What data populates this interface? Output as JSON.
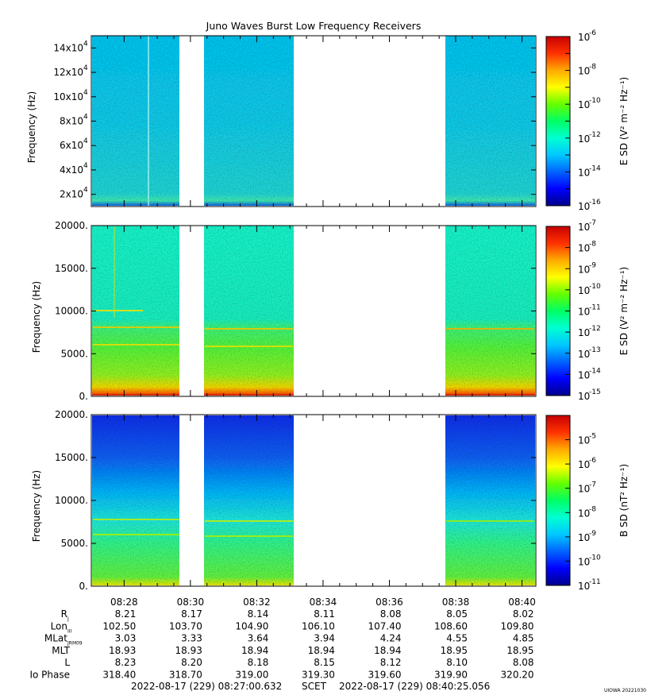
{
  "title": "Juno Waves Burst Low Frequency Receivers",
  "time_labels": [
    "08:28",
    "08:30",
    "08:32",
    "08:34",
    "08:36",
    "08:38",
    "08:40"
  ],
  "ephemeris": {
    "rows": [
      {
        "label": "R",
        "sub": "J",
        "values": [
          "8.21",
          "8.17",
          "8.14",
          "8.11",
          "8.08",
          "8.05",
          "8.02"
        ]
      },
      {
        "label": "Lon",
        "sub": "III",
        "values": [
          "102.50",
          "103.70",
          "104.90",
          "106.10",
          "107.40",
          "108.60",
          "109.80"
        ]
      },
      {
        "label": "MLat",
        "sub": "JRM09",
        "values": [
          "3.03",
          "3.33",
          "3.64",
          "3.94",
          "4.24",
          "4.55",
          "4.85"
        ]
      },
      {
        "label": "MLT",
        "sub": "",
        "values": [
          "18.93",
          "18.93",
          "18.94",
          "18.94",
          "18.94",
          "18.95",
          "18.95"
        ]
      },
      {
        "label": "L",
        "sub": "",
        "values": [
          "8.23",
          "8.20",
          "8.18",
          "8.15",
          "8.12",
          "8.10",
          "8.08"
        ]
      },
      {
        "label": "Io Phase",
        "sub": "",
        "values": [
          "318.40",
          "318.70",
          "319.00",
          "319.30",
          "319.60",
          "319.90",
          "320.20"
        ]
      }
    ]
  },
  "footer": {
    "start": "2022-08-17 (229) 08:27:00.632",
    "scet": "SCET",
    "end": "2022-08-17 (229) 08:40:25.056",
    "credit": "UIOWA 20221030"
  },
  "colors": {
    "background": "#ffffff",
    "colormap": [
      "#00008c",
      "#0000ff",
      "#0064ff",
      "#00c8ff",
      "#00ffd2",
      "#00ff64",
      "#64ff00",
      "#ffff00",
      "#ffaa00",
      "#ff3200",
      "#c80000"
    ]
  },
  "chart_data": [
    {
      "type": "heatmap",
      "title": "Juno Waves Burst Low Frequency Receivers",
      "xlabel": "",
      "ylabel": "Frequency (Hz)",
      "x_range": [
        "08:27:00.632",
        "08:40:25.056"
      ],
      "ylim": [
        10000,
        150000
      ],
      "y_ticks": [
        20000,
        40000,
        60000,
        80000,
        100000,
        120000,
        140000
      ],
      "y_tick_labels": [
        {
          "mant": "2x10",
          "exp": "4"
        },
        {
          "mant": "4x10",
          "exp": "4"
        },
        {
          "mant": "6x10",
          "exp": "4"
        },
        {
          "mant": "8x10",
          "exp": "4"
        },
        {
          "mant": "10x10",
          "exp": "4"
        },
        {
          "mant": "12x10",
          "exp": "4"
        },
        {
          "mant": "14x10",
          "exp": "4"
        }
      ],
      "colorbar": {
        "label": "E SD (V² m⁻² Hz⁻¹)",
        "label_main": "E SD(V",
        "scale": "log",
        "range_exponents": [
          -16,
          -6
        ],
        "tick_exponents": [
          "-6",
          "-8",
          "-10",
          "-12",
          "-14",
          "-16"
        ]
      },
      "data_intervals": [
        [
          "08:27:00",
          "08:29:40"
        ],
        [
          "08:30:25",
          "08:33:05"
        ],
        [
          "08:37:40",
          "08:40:25"
        ]
      ],
      "gaps": [
        [
          "08:29:40",
          "08:30:25"
        ],
        [
          "08:33:05",
          "08:37:40"
        ]
      ],
      "dominant_level_exp": -14
    },
    {
      "type": "heatmap",
      "xlabel": "",
      "ylabel": "Frequency (Hz)",
      "x_range": [
        "08:27:00.632",
        "08:40:25.056"
      ],
      "ylim": [
        0,
        20000
      ],
      "y_ticks": [
        0,
        5000,
        10000,
        15000,
        20000
      ],
      "y_tick_labels": [
        "0.",
        "5000.",
        "10000.",
        "15000.",
        "20000."
      ],
      "colorbar": {
        "label": "E SD (V² m⁻² Hz⁻¹)",
        "label_main": "E SD(V",
        "scale": "log",
        "range_exponents": [
          -15,
          -7
        ],
        "tick_exponents": [
          "-7",
          "-8",
          "-9",
          "-10",
          "-11",
          "-12",
          "-13",
          "-14",
          "-15"
        ]
      },
      "data_intervals": [
        [
          "08:27:00",
          "08:29:40"
        ],
        [
          "08:30:25",
          "08:33:05"
        ],
        [
          "08:37:40",
          "08:40:25"
        ]
      ],
      "gaps": [
        [
          "08:29:40",
          "08:30:25"
        ],
        [
          "08:33:05",
          "08:37:40"
        ]
      ],
      "bands_hz": [
        {
          "low": 0,
          "high": 800,
          "level_exp": -8
        },
        {
          "low": 800,
          "high": 3000,
          "level_exp": -10
        },
        {
          "low": 3000,
          "high": 8000,
          "level_exp": -11
        },
        {
          "low": 9500,
          "high": 10200,
          "level_exp": -11
        },
        {
          "low": 8000,
          "high": 20000,
          "level_exp": -12.5
        }
      ]
    },
    {
      "type": "heatmap",
      "xlabel": "",
      "ylabel": "Frequency (Hz)",
      "x_range": [
        "08:27:00.632",
        "08:40:25.056"
      ],
      "ylim": [
        0,
        20000
      ],
      "y_ticks": [
        0,
        5000,
        10000,
        15000,
        20000
      ],
      "y_tick_labels": [
        "0.",
        "5000.",
        "10000.",
        "15000.",
        "20000."
      ],
      "colorbar": {
        "label": "B SD (nT² Hz⁻¹)",
        "label_main": "B SD(nT",
        "scale": "log",
        "range_exponents": [
          -11,
          -4
        ],
        "tick_exponents": [
          "-5",
          "-6",
          "-7",
          "-8",
          "-9",
          "-10",
          "-11"
        ]
      },
      "data_intervals": [
        [
          "08:27:00",
          "08:29:40"
        ],
        [
          "08:30:25",
          "08:33:05"
        ],
        [
          "08:37:40",
          "08:40:25"
        ]
      ],
      "gaps": [
        [
          "08:29:40",
          "08:30:25"
        ],
        [
          "08:33:05",
          "08:37:40"
        ]
      ],
      "bands_hz": [
        {
          "low": 0,
          "high": 800,
          "level_exp": -7
        },
        {
          "low": 800,
          "high": 8000,
          "level_exp": -8.5
        },
        {
          "low": 8000,
          "high": 13000,
          "level_exp": -9
        },
        {
          "low": 13000,
          "high": 20000,
          "level_exp": -10.5
        }
      ]
    }
  ]
}
